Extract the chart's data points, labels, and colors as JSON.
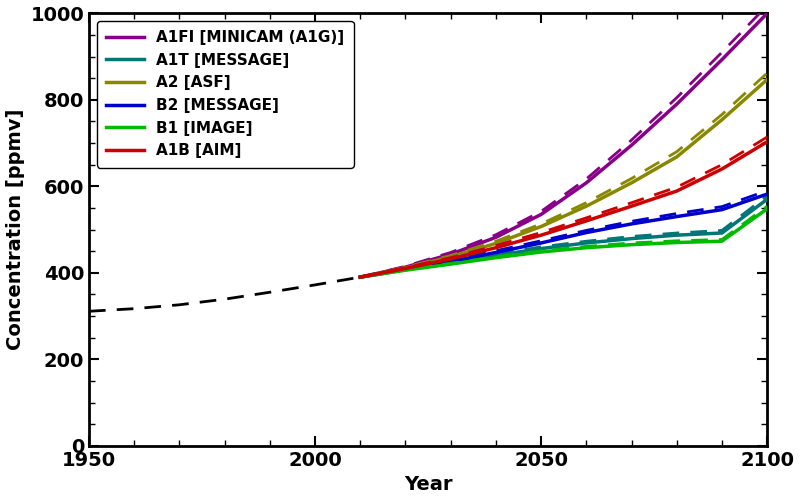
{
  "title": "",
  "xlabel": "Year",
  "ylabel": "Concentration [ppmv]",
  "xlim": [
    1950,
    2100
  ],
  "ylim": [
    0,
    1000
  ],
  "xticks": [
    1950,
    2000,
    2050,
    2100
  ],
  "yticks": [
    0,
    200,
    400,
    600,
    800,
    1000
  ],
  "historical": {
    "years": [
      1950,
      1960,
      1970,
      1980,
      1990,
      2000,
      2005,
      2010
    ],
    "values": [
      311,
      317,
      326,
      339,
      355,
      372,
      381,
      390
    ],
    "color": "black",
    "linestyle": "dashed",
    "linewidth": 2.0
  },
  "scenarios": [
    {
      "name": "A1FI [MINICAM (A1G)]",
      "color": "#880088",
      "years": [
        2010,
        2020,
        2030,
        2040,
        2050,
        2060,
        2070,
        2080,
        2090,
        2100
      ],
      "values_solid": [
        390,
        413,
        443,
        482,
        535,
        608,
        695,
        790,
        893,
        1000
      ],
      "values_dash": [
        390,
        415,
        447,
        488,
        542,
        617,
        707,
        805,
        910,
        1018
      ]
    },
    {
      "name": "A1T [MESSAGE]",
      "color": "#007777",
      "years": [
        2010,
        2020,
        2030,
        2040,
        2050,
        2060,
        2070,
        2080,
        2090,
        2100
      ],
      "values_solid": [
        390,
        407,
        423,
        440,
        456,
        469,
        479,
        487,
        492,
        570
      ],
      "values_dash": [
        390,
        409,
        426,
        443,
        460,
        473,
        484,
        492,
        498,
        578
      ]
    },
    {
      "name": "A2 [ASF]",
      "color": "#888800",
      "years": [
        2010,
        2020,
        2030,
        2040,
        2050,
        2060,
        2070,
        2080,
        2090,
        2100
      ],
      "values_solid": [
        390,
        411,
        437,
        468,
        507,
        554,
        608,
        668,
        754,
        847
      ],
      "values_dash": [
        390,
        413,
        440,
        473,
        513,
        562,
        618,
        680,
        766,
        862
      ]
    },
    {
      "name": "B2 [MESSAGE]",
      "color": "#0000cc",
      "years": [
        2010,
        2020,
        2030,
        2040,
        2050,
        2060,
        2070,
        2080,
        2090,
        2100
      ],
      "values_solid": [
        390,
        408,
        426,
        447,
        469,
        493,
        513,
        530,
        546,
        582
      ],
      "values_dash": [
        390,
        410,
        429,
        451,
        474,
        498,
        519,
        537,
        553,
        590
      ]
    },
    {
      "name": "B1 [IMAGE]",
      "color": "#00bb00",
      "years": [
        2010,
        2020,
        2030,
        2040,
        2050,
        2060,
        2070,
        2080,
        2090,
        2100
      ],
      "values_solid": [
        390,
        406,
        420,
        435,
        448,
        458,
        465,
        470,
        473,
        548
      ],
      "values_dash": [
        390,
        408,
        422,
        437,
        451,
        461,
        469,
        474,
        477,
        554
      ]
    },
    {
      "name": "A1B [AIM]",
      "color": "#cc0000",
      "years": [
        2010,
        2020,
        2030,
        2040,
        2050,
        2060,
        2070,
        2080,
        2090,
        2100
      ],
      "values_solid": [
        390,
        410,
        432,
        458,
        487,
        520,
        554,
        589,
        640,
        703
      ],
      "values_dash": [
        390,
        412,
        435,
        463,
        493,
        527,
        562,
        598,
        650,
        714
      ]
    }
  ],
  "legend_loc": "upper left",
  "figsize": [
    8.0,
    5.0
  ],
  "dpi": 100,
  "font_family": "DejaVu Sans",
  "tick_labelsize": 14,
  "axis_labelsize": 14
}
